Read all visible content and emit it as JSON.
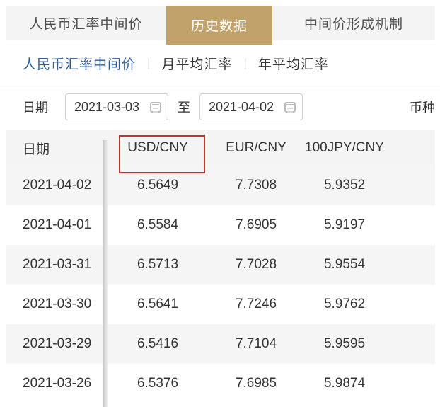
{
  "colors": {
    "active_tab_bg": "#c1a26b",
    "active_link_blue": "#2d5c97",
    "annotation_red": "#c53030",
    "bar_gray": "#f4f4f4",
    "row_alt_gray": "#f5f5f5"
  },
  "top_tabs": {
    "items": [
      {
        "label": "人民币汇率中间价",
        "active": false
      },
      {
        "label": "历史数据",
        "active": true
      },
      {
        "label": "中间价形成机制",
        "active": false
      }
    ]
  },
  "subnav": {
    "items": [
      {
        "label": "人民币汇率中间价",
        "active": true
      },
      {
        "label": "月平均汇率",
        "active": false
      },
      {
        "label": "年平均汇率",
        "active": false
      }
    ],
    "separator": "|"
  },
  "filters": {
    "date_label": "日期",
    "start_date": "2021-03-03",
    "to_label": "至",
    "end_date": "2021-04-02",
    "currency_label": "币种"
  },
  "table": {
    "headers": {
      "date": "日期",
      "usd": "USD/CNY",
      "eur": "EUR/CNY",
      "jpy": "100JPY/CNY"
    },
    "rows": [
      {
        "date": "2021-04-02",
        "usd": "6.5649",
        "eur": "7.7308",
        "jpy": "5.9352"
      },
      {
        "date": "2021-04-01",
        "usd": "6.5584",
        "eur": "7.6905",
        "jpy": "5.9197"
      },
      {
        "date": "2021-03-31",
        "usd": "6.5713",
        "eur": "7.7028",
        "jpy": "5.9554"
      },
      {
        "date": "2021-03-30",
        "usd": "6.5641",
        "eur": "7.7246",
        "jpy": "5.9762"
      },
      {
        "date": "2021-03-29",
        "usd": "6.5416",
        "eur": "7.7104",
        "jpy": "5.9595"
      },
      {
        "date": "2021-03-26",
        "usd": "6.5376",
        "eur": "7.6985",
        "jpy": "5.9874"
      }
    ]
  }
}
